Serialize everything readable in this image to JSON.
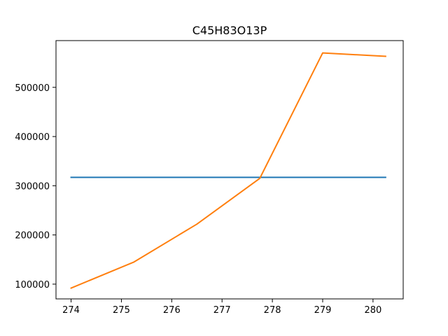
{
  "chart_data": {
    "type": "line",
    "title": "C45H83O13P",
    "xlabel": "",
    "ylabel": "",
    "xlim": [
      273.7,
      280.6
    ],
    "ylim": [
      70000,
      595000
    ],
    "grid": false,
    "legend": "none",
    "x_ticks": [
      274,
      275,
      276,
      277,
      278,
      279,
      280
    ],
    "x_tick_labels": [
      "274",
      "275",
      "276",
      "277",
      "278",
      "279",
      "280"
    ],
    "y_ticks": [
      100000,
      200000,
      300000,
      400000,
      500000
    ],
    "y_tick_labels": [
      "100000",
      "200000",
      "300000",
      "400000",
      "500000"
    ],
    "series": [
      {
        "color": "#1f77b4",
        "x": [
          274.0,
          280.25
        ],
        "values": [
          317000,
          317000
        ]
      },
      {
        "color": "#ff7f0e",
        "x": [
          274.0,
          275.25,
          276.5,
          277.75,
          279.0,
          280.25
        ],
        "values": [
          92000,
          145000,
          222000,
          315000,
          570000,
          563000
        ]
      }
    ]
  }
}
